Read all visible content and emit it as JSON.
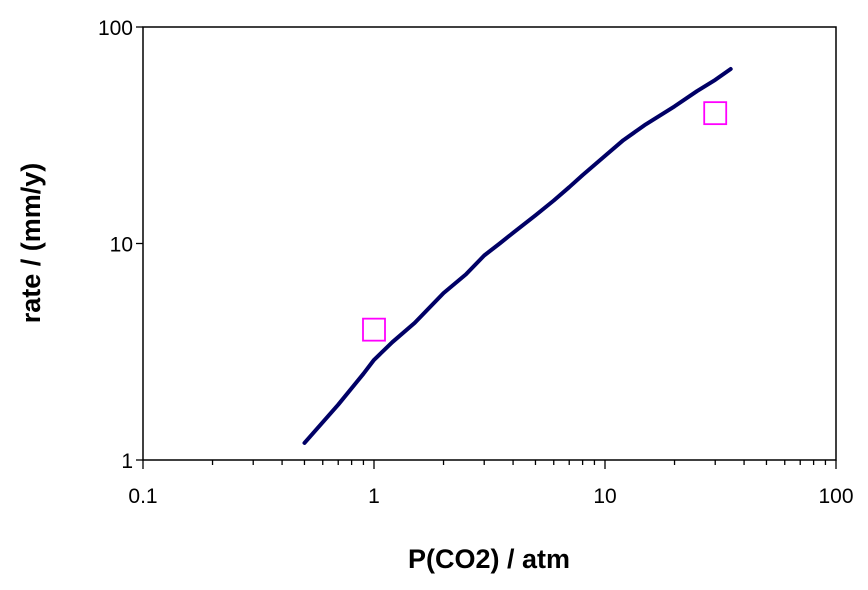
{
  "chart_data": {
    "type": "line",
    "title": "",
    "xlabel": "P(CO2) / atm",
    "ylabel": "rate / (mm/y)",
    "xscale": "log",
    "yscale": "log",
    "xlim": [
      0.1,
      100
    ],
    "ylim": [
      1,
      100
    ],
    "xticks": [
      0.1,
      1,
      10,
      100
    ],
    "xtick_labels": [
      "0.1",
      "1",
      "10",
      "100"
    ],
    "yticks": [
      1,
      10,
      100
    ],
    "ytick_labels": [
      "1",
      "10",
      "100"
    ],
    "grid": false,
    "legend": "none",
    "series": [
      {
        "kind": "line",
        "color": "#000066",
        "x": [
          0.5,
          0.7,
          0.9,
          1.0,
          1.2,
          1.5,
          2.0,
          2.5,
          3.0,
          3.5,
          4.0,
          5.0,
          6.0,
          7.0,
          8.0,
          10.0,
          12.0,
          15.0,
          20.0,
          25.0,
          30.0,
          35.0
        ],
        "y": [
          1.2,
          1.8,
          2.5,
          2.9,
          3.5,
          4.3,
          5.9,
          7.2,
          8.8,
          10.0,
          11.2,
          13.5,
          15.8,
          18.2,
          20.7,
          25.4,
          30.0,
          35.5,
          43.0,
          50.5,
          57.0,
          64.0
        ]
      },
      {
        "kind": "scatter",
        "marker": "square-open",
        "color": "#ff00ff",
        "x": [
          1,
          30
        ],
        "y": [
          4,
          40
        ]
      }
    ]
  }
}
